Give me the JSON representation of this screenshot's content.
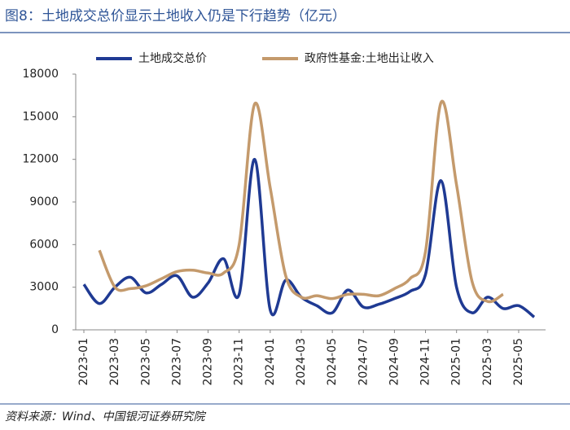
{
  "chart_data": {
    "type": "line",
    "title": "图8：土地成交总价显示土地收入仍是下行趋势（亿元）",
    "source": "资料来源：Wind、中国银河证券研究院",
    "categories": [
      "2023-01",
      null,
      "2023-03",
      null,
      "2023-05",
      null,
      "2023-07",
      null,
      "2023-09",
      null,
      "2023-11",
      null,
      "2024-01",
      null,
      "2024-03",
      null,
      "2024-05",
      null,
      "2024-07",
      null,
      "2024-09",
      null,
      "2024-11",
      null,
      "2025-01",
      null,
      "2025-03",
      null,
      "2025-05",
      null
    ],
    "series": [
      {
        "name": "土地成交总价",
        "color": "#1f3a93",
        "values": [
          3200,
          1850,
          3000,
          3700,
          2600,
          3200,
          3800,
          2300,
          3300,
          5000,
          2500,
          12000,
          1400,
          3500,
          2300,
          1700,
          1200,
          2800,
          1600,
          1800,
          2200,
          2700,
          3900,
          10500,
          3000,
          1200,
          2300,
          1500,
          1700,
          900
        ]
      },
      {
        "name": "政府性基金:土地出让收入",
        "color": "#c49a6c",
        "values": [
          null,
          5600,
          3000,
          2900,
          3100,
          3600,
          4100,
          4200,
          4000,
          4000,
          6000,
          15900,
          10000,
          3800,
          2300,
          2400,
          2200,
          2500,
          2500,
          2400,
          2900,
          3600,
          5500,
          16000,
          10200,
          3400,
          2000,
          2500,
          null,
          null
        ]
      }
    ],
    "ylim": [
      0,
      18000
    ],
    "yticks": [
      0,
      3000,
      6000,
      9000,
      12000,
      15000,
      18000
    ],
    "legend": "top"
  }
}
